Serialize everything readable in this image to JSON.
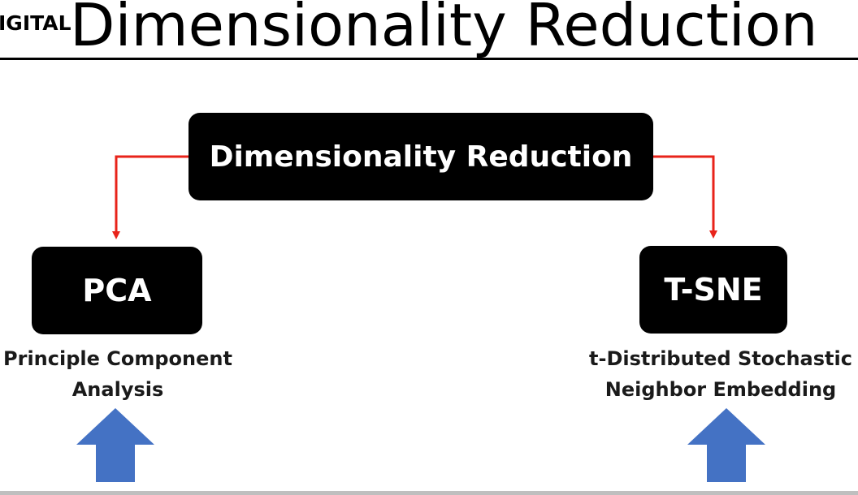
{
  "watermark": {
    "text": "IGITAL"
  },
  "slide": {
    "title": "Dimensionality Reduction"
  },
  "diagram": {
    "root": {
      "label": "Dimensionality Reduction"
    },
    "children": [
      {
        "id": "pca",
        "label": "PCA",
        "caption_line1": "Principle Component",
        "caption_line2": "Analysis"
      },
      {
        "id": "tsne",
        "label": "T-SNE",
        "caption_line1": "t-Distributed Stochastic",
        "caption_line2": "Neighbor Embedding"
      }
    ]
  },
  "colors": {
    "box_fill": "#000000",
    "box_text": "#ffffff",
    "connector": "#e8231a",
    "up_arrow": "#4472c4",
    "title_text": "#000000"
  },
  "icons": {
    "left_arrow": "up-arrow-icon",
    "right_arrow": "up-arrow-icon"
  }
}
